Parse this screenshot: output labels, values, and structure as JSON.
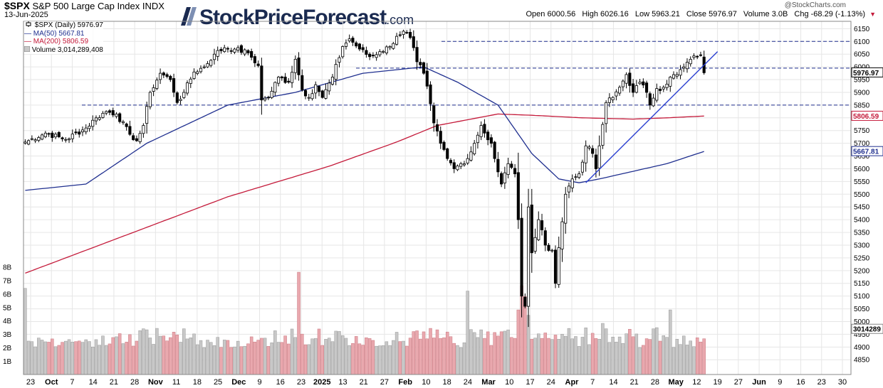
{
  "header": {
    "symbol": "$SPX",
    "name": "S&P 500 Large Cap Index",
    "exchange": "INDX",
    "date": "13-Jun-2025",
    "logo_main": "StockPriceForecast",
    "logo_suffix": ".com",
    "watermark": "@StockCharts.com",
    "ohlc": {
      "open_label": "Open",
      "open": "6000.56",
      "high_label": "High",
      "high": "6026.16",
      "low_label": "Low",
      "low": "5963.21",
      "close_label": "Close",
      "close": "5976.97",
      "volume_label": "Volume",
      "volume": "3.0B",
      "chg_label": "Chg",
      "chg": "-68.29 (-1.13%)"
    }
  },
  "legend": {
    "price": "$SPX (Daily) 5976.97",
    "ma50": "MA(50) 5667.81",
    "ma200": "MA(200) 5806.59",
    "volume": "Volume 3,014,289,408"
  },
  "colors": {
    "up": "#ffffff",
    "down": "#000000",
    "ma50": "#1f2f8f",
    "ma200": "#c41a3a",
    "trendline": "#2a3fd0",
    "levels": "#1f2f8f",
    "vol_up": "#c8c8c8",
    "vol_down": "#e9a8ae",
    "grid": "#e6e6e6"
  },
  "chart_data": {
    "type": "candlestick",
    "x_ticks": [
      "23",
      "Oct",
      "7",
      "14",
      "21",
      "28",
      "Nov",
      "11",
      "18",
      "25",
      "Dec",
      "9",
      "16",
      "23",
      "2025",
      "13",
      "21",
      "27",
      "Feb",
      "10",
      "18",
      "24",
      "Mar",
      "10",
      "17",
      "24",
      "Apr",
      "7",
      "14",
      "21",
      "28",
      "May",
      "12",
      "19",
      "27",
      "Jun",
      "9",
      "16",
      "23",
      "30"
    ],
    "y_ticks": [
      "4850",
      "4900",
      "4950",
      "5000",
      "5050",
      "5100",
      "5150",
      "5200",
      "5250",
      "5300",
      "5350",
      "5400",
      "5450",
      "5500",
      "5550",
      "5600",
      "5650",
      "5700",
      "5750",
      "5800",
      "5850",
      "5900",
      "5950",
      "6000",
      "6050",
      "6100",
      "6150"
    ],
    "ylim": [
      4820,
      6165
    ],
    "vol_ticks": [
      "1B",
      "2B",
      "3B",
      "4B",
      "5B",
      "6B",
      "7B",
      "8B"
    ],
    "vol_lim": [
      0,
      8.5
    ],
    "price_labels": {
      "close": "5976.97",
      "ma200": "5806.59",
      "ma50": "5667.81",
      "volume": "3014289"
    },
    "levels": [
      6100,
      5995,
      5850
    ],
    "anchors": [
      [
        0,
        5705
      ],
      [
        6,
        5740
      ],
      [
        12,
        5715
      ],
      [
        18,
        5760
      ],
      [
        21,
        5800
      ],
      [
        24,
        5825
      ],
      [
        27,
        5815
      ],
      [
        31,
        5735
      ],
      [
        33,
        5710
      ],
      [
        35,
        5770
      ],
      [
        37,
        5900
      ],
      [
        40,
        5975
      ],
      [
        43,
        5950
      ],
      [
        45,
        5860
      ],
      [
        47,
        5900
      ],
      [
        50,
        5980
      ],
      [
        53,
        6000
      ],
      [
        56,
        6050
      ],
      [
        59,
        6075
      ],
      [
        62,
        6070
      ],
      [
        66,
        6055
      ],
      [
        69,
        6005
      ],
      [
        70,
        5870
      ],
      [
        72,
        5880
      ],
      [
        75,
        5960
      ],
      [
        78,
        5940
      ],
      [
        80,
        6030
      ],
      [
        82,
        5910
      ],
      [
        84,
        5880
      ],
      [
        86,
        5930
      ],
      [
        88,
        5880
      ],
      [
        91,
        5960
      ],
      [
        94,
        6080
      ],
      [
        96,
        6110
      ],
      [
        99,
        6070
      ],
      [
        102,
        6040
      ],
      [
        105,
        6060
      ],
      [
        108,
        6080
      ],
      [
        110,
        6120
      ],
      [
        112,
        6140
      ],
      [
        114,
        6115
      ],
      [
        116,
        6020
      ],
      [
        118,
        5975
      ],
      [
        120,
        5855
      ],
      [
        121,
        5780
      ],
      [
        123,
        5700
      ],
      [
        125,
        5640
      ],
      [
        127,
        5600
      ],
      [
        129,
        5620
      ],
      [
        131,
        5640
      ],
      [
        133,
        5700
      ],
      [
        135,
        5770
      ],
      [
        136,
        5740
      ],
      [
        138,
        5700
      ],
      [
        139,
        5640
      ],
      [
        141,
        5540
      ],
      [
        143,
        5620
      ],
      [
        145,
        5580
      ],
      [
        146,
        5400
      ],
      [
        147,
        5100
      ],
      [
        148,
        5060
      ],
      [
        149,
        5450
      ],
      [
        150,
        5270
      ],
      [
        152,
        5400
      ],
      [
        154,
        5300
      ],
      [
        156,
        5280
      ],
      [
        157,
        5150
      ],
      [
        158,
        5290
      ],
      [
        160,
        5500
      ],
      [
        162,
        5560
      ],
      [
        164,
        5580
      ],
      [
        166,
        5690
      ],
      [
        168,
        5660
      ],
      [
        169,
        5600
      ],
      [
        170,
        5690
      ],
      [
        172,
        5860
      ],
      [
        174,
        5880
      ],
      [
        176,
        5920
      ],
      [
        178,
        5970
      ],
      [
        180,
        5900
      ],
      [
        182,
        5940
      ],
      [
        184,
        5900
      ],
      [
        185,
        5850
      ],
      [
        187,
        5915
      ],
      [
        189,
        5920
      ],
      [
        191,
        5960
      ],
      [
        193,
        5970
      ],
      [
        195,
        6000
      ],
      [
        197,
        6030
      ],
      [
        199,
        6040
      ],
      [
        200,
        6045
      ],
      [
        201,
        5977
      ]
    ],
    "ma50_pts": [
      [
        0,
        5515
      ],
      [
        18,
        5540
      ],
      [
        36,
        5700
      ],
      [
        60,
        5850
      ],
      [
        80,
        5900
      ],
      [
        100,
        5975
      ],
      [
        118,
        6000
      ],
      [
        128,
        5940
      ],
      [
        140,
        5850
      ],
      [
        150,
        5660
      ],
      [
        158,
        5560
      ],
      [
        164,
        5545
      ],
      [
        170,
        5560
      ],
      [
        180,
        5590
      ],
      [
        190,
        5620
      ],
      [
        201,
        5668
      ]
    ],
    "ma200_pts": [
      [
        0,
        5190
      ],
      [
        30,
        5340
      ],
      [
        60,
        5490
      ],
      [
        90,
        5610
      ],
      [
        110,
        5705
      ],
      [
        122,
        5770
      ],
      [
        140,
        5815
      ],
      [
        150,
        5810
      ],
      [
        165,
        5800
      ],
      [
        180,
        5795
      ],
      [
        190,
        5800
      ],
      [
        201,
        5807
      ]
    ],
    "trendline": [
      [
        166,
        5545
      ],
      [
        205,
        6060
      ]
    ]
  }
}
